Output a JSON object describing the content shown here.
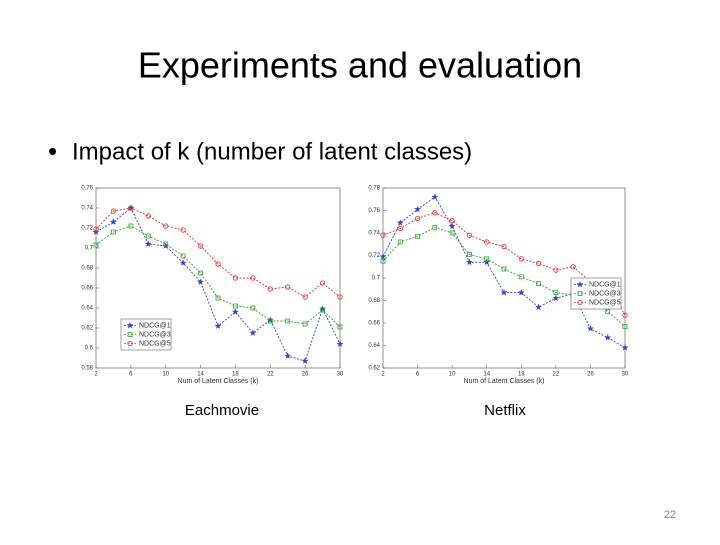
{
  "slide": {
    "title": "Experiments and evaluation",
    "bullet": "Impact of k (number of latent classes)",
    "page_number": "22"
  },
  "chart_data": [
    {
      "type": "line",
      "caption": "Eachmovie",
      "xlabel": "Num of Latent Classes (k)",
      "x": [
        2,
        4,
        6,
        8,
        10,
        12,
        14,
        16,
        18,
        20,
        22,
        24,
        26,
        28,
        30
      ],
      "xlim": [
        2,
        30
      ],
      "xticks": [
        2,
        6,
        10,
        14,
        18,
        22,
        26,
        30
      ],
      "ylim": [
        0.58,
        0.76
      ],
      "yticks": [
        0.58,
        0.6,
        0.62,
        0.64,
        0.66,
        0.68,
        0.7,
        0.72,
        0.74,
        0.76
      ],
      "legend": "lower left",
      "series": [
        {
          "name": "NDCG@1",
          "color": "#3344cc",
          "marker": "star",
          "values": [
            0.716,
            0.726,
            0.74,
            0.704,
            0.702,
            0.685,
            0.666,
            0.622,
            0.636,
            0.615,
            0.628,
            0.592,
            0.587,
            0.639,
            0.604
          ]
        },
        {
          "name": "NDCG@3",
          "color": "#33a033",
          "marker": "square",
          "values": [
            0.703,
            0.716,
            0.722,
            0.712,
            0.704,
            0.692,
            0.675,
            0.65,
            0.642,
            0.64,
            0.627,
            0.627,
            0.624,
            0.638,
            0.621
          ]
        },
        {
          "name": "NDCG@5",
          "color": "#dd3333",
          "marker": "circle",
          "values": [
            0.719,
            0.737,
            0.74,
            0.732,
            0.722,
            0.718,
            0.702,
            0.684,
            0.67,
            0.67,
            0.659,
            0.661,
            0.651,
            0.665,
            0.651
          ]
        }
      ]
    },
    {
      "type": "line",
      "caption": "Netflix",
      "xlabel": "Num of Latent Classes (k)",
      "x": [
        2,
        4,
        6,
        8,
        10,
        12,
        14,
        16,
        18,
        20,
        22,
        24,
        26,
        28,
        30
      ],
      "xlim": [
        2,
        30
      ],
      "xticks": [
        2,
        6,
        10,
        14,
        18,
        22,
        26,
        30
      ],
      "ylim": [
        0.62,
        0.78
      ],
      "yticks": [
        0.62,
        0.64,
        0.66,
        0.68,
        0.7,
        0.72,
        0.74,
        0.76,
        0.78
      ],
      "legend": "upper right",
      "series": [
        {
          "name": "NDCG@1",
          "color": "#3344cc",
          "marker": "star",
          "values": [
            0.719,
            0.749,
            0.761,
            0.772,
            0.746,
            0.714,
            0.714,
            0.687,
            0.687,
            0.674,
            0.682,
            0.686,
            0.655,
            0.647,
            0.638
          ]
        },
        {
          "name": "NDCG@3",
          "color": "#33a033",
          "marker": "square",
          "values": [
            0.715,
            0.732,
            0.737,
            0.745,
            0.74,
            0.721,
            0.717,
            0.708,
            0.701,
            0.695,
            0.687,
            0.685,
            0.683,
            0.67,
            0.657
          ]
        },
        {
          "name": "NDCG@5",
          "color": "#dd3333",
          "marker": "circle",
          "values": [
            0.738,
            0.744,
            0.753,
            0.758,
            0.751,
            0.738,
            0.732,
            0.728,
            0.717,
            0.713,
            0.707,
            0.71,
            0.697,
            0.694,
            0.667
          ]
        }
      ]
    }
  ]
}
